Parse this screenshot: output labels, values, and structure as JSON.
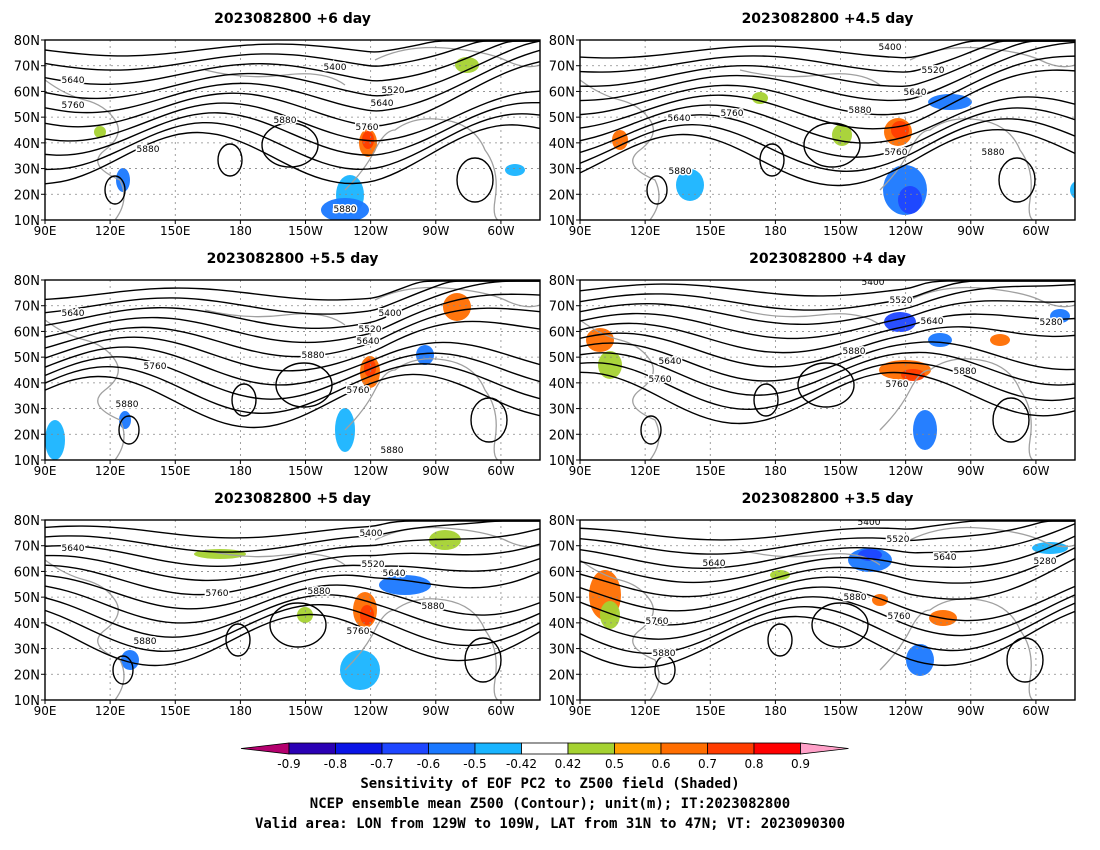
{
  "panels": [
    {
      "title": "2023082800  +6 day",
      "contour_labels": [
        "5400",
        "5520",
        "5640",
        "5640",
        "5760",
        "5880",
        "5760",
        "5880",
        "5880"
      ]
    },
    {
      "title": "2023082800  +4.5 day",
      "contour_labels": [
        "5400",
        "5520",
        "5640",
        "5640",
        "5760",
        "5880",
        "5760",
        "5880",
        "5880"
      ]
    },
    {
      "title": "2023082800  +5.5 day",
      "contour_labels": [
        "5400",
        "5520",
        "5640",
        "5640",
        "5760",
        "5880",
        "5760",
        "5880",
        "5880"
      ]
    },
    {
      "title": "2023082800  +4 day",
      "contour_labels": [
        "5400",
        "5520",
        "5640",
        "5640",
        "5760",
        "5880",
        "5760",
        "5880",
        "5280"
      ]
    },
    {
      "title": "2023082800  +5 day",
      "contour_labels": [
        "5400",
        "5520",
        "5640",
        "5640",
        "5760",
        "5880",
        "5760",
        "5880",
        "5880"
      ]
    },
    {
      "title": "2023082800  +3.5 day",
      "contour_labels": [
        "5400",
        "5520",
        "5640",
        "5640",
        "5760",
        "5880",
        "5760",
        "5880",
        "5280"
      ]
    }
  ],
  "axes": {
    "lat_labels": [
      "80N",
      "70N",
      "60N",
      "50N",
      "40N",
      "30N",
      "20N",
      "10N"
    ],
    "lon_labels": [
      "90E",
      "120E",
      "150E",
      "180",
      "150W",
      "120W",
      "90W",
      "60W"
    ]
  },
  "colorbar": {
    "ticks": [
      "-0.9",
      "-0.8",
      "-0.7",
      "-0.6",
      "-0.5",
      "-0.42",
      "0.42",
      "0.5",
      "0.6",
      "0.7",
      "0.8",
      "0.9"
    ],
    "colors": [
      "#2a00b4",
      "#0a14e6",
      "#1e46ff",
      "#1a78ff",
      "#19b4ff",
      "#ffffff",
      "#a5d232",
      "#ffa000",
      "#ff6e00",
      "#ff3c00",
      "#ff0000"
    ],
    "low_arrow_color": "#b4006e",
    "high_arrow_color": "#ffa0c8"
  },
  "captions": {
    "line1": "Sensitivity of EOF PC2 to Z500 field (Shaded)",
    "line2": "NCEP ensemble mean Z500 (Contour); unit(m); IT:2023082800",
    "line3": "Valid area: LON from 129W to 109W, LAT from 31N to 47N; VT: 2023090300"
  }
}
